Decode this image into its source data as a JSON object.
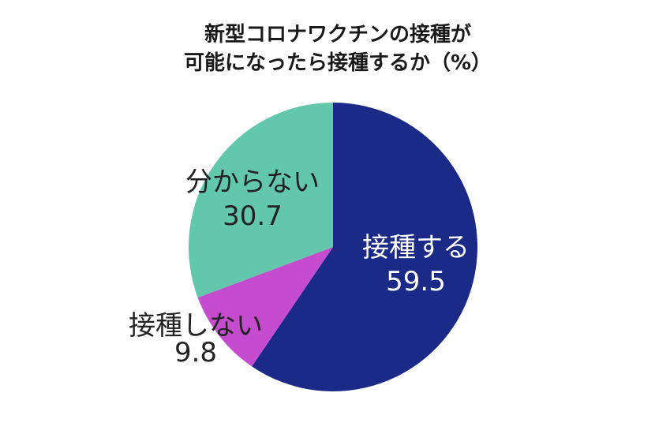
{
  "chart_data": {
    "type": "pie",
    "title": "新型コロナワクチンの接種が\n可能になったら接種するか（%）",
    "title_lines": [
      "新型コロナワクチンの接種が",
      "可能になったら接種するか（%）"
    ],
    "slices": [
      {
        "label": "接種する",
        "value": 59.5,
        "value_text": "59.5",
        "color": "#1a2a86",
        "label_color": "#ffffff"
      },
      {
        "label": "接種しない",
        "value": 9.8,
        "value_text": "9.8",
        "color": "#c54bcf",
        "label_color": "#222222"
      },
      {
        "label": "分からない",
        "value": 30.7,
        "value_text": "30.7",
        "color": "#63c7ab",
        "label_color": "#222222"
      }
    ],
    "start": "12 o'clock",
    "direction": "clockwise",
    "legend": "none"
  }
}
